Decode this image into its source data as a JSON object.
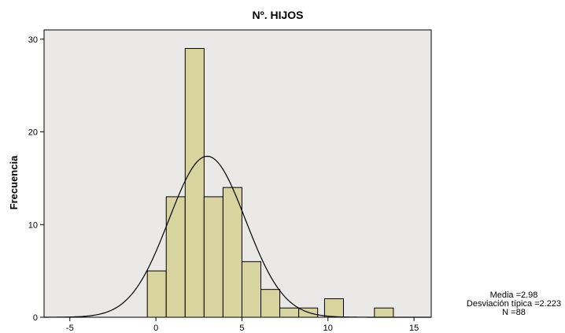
{
  "chart_data": {
    "type": "bar",
    "title": "Nº. HIJOS",
    "xlabel": "",
    "ylabel": "Frecuencia",
    "xlim": [
      -6.5,
      16
    ],
    "ylim": [
      0,
      31
    ],
    "x_ticks": [
      -5,
      0,
      5,
      10,
      15
    ],
    "y_ticks": [
      0,
      10,
      20,
      30
    ],
    "bin_width": 1.1,
    "bins": [
      {
        "start": -0.5,
        "count": 5
      },
      {
        "start": 0.6,
        "count": 13
      },
      {
        "start": 1.7,
        "count": 29
      },
      {
        "start": 2.8,
        "count": 13
      },
      {
        "start": 3.9,
        "count": 14
      },
      {
        "start": 5.0,
        "count": 6
      },
      {
        "start": 6.1,
        "count": 3
      },
      {
        "start": 7.2,
        "count": 1
      },
      {
        "start": 8.3,
        "count": 1
      },
      {
        "start": 9.4,
        "count": 0
      },
      {
        "start": 10.5,
        "count": 0
      },
      {
        "start": 11.6,
        "count": 0
      },
      {
        "start": 12.7,
        "count": 1
      }
    ],
    "highlight_bins": [
      {
        "start": 9.8,
        "count": 2
      }
    ],
    "normal_curve": {
      "mean": 2.98,
      "sd": 2.223,
      "n": 88
    },
    "stats_text": [
      "Media =2.98",
      "Desviación típica =2.223",
      "N =88"
    ],
    "colors": {
      "bar_fill": "#d8d4a0",
      "plot_background": "#eae9e8",
      "curve": "#000000"
    },
    "grid": false
  }
}
